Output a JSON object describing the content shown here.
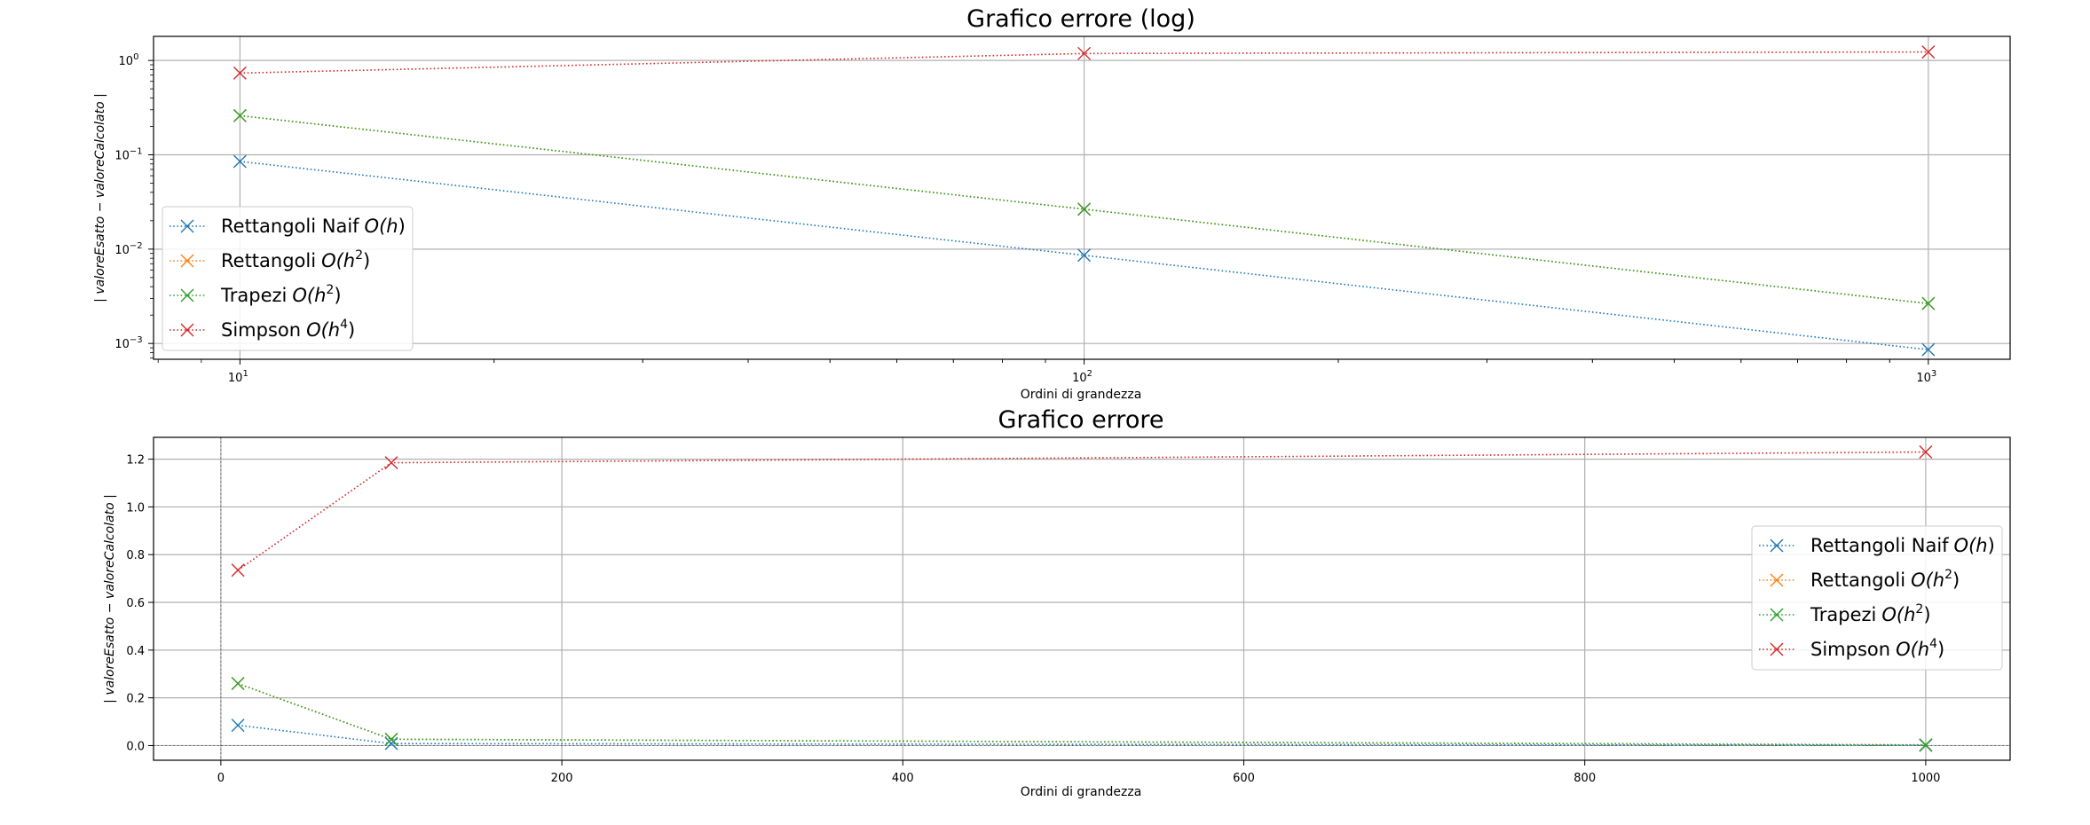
{
  "chart_data": [
    {
      "type": "line",
      "title": "Grafico errore (log)",
      "xlabel": "Ordini di grandezza",
      "ylabel": "| valoreEsatto − valoreCalcolato |",
      "xscale": "log",
      "yscale": "log",
      "xlim": [
        7.9,
        1250
      ],
      "ylim": [
        0.00068,
        1.8
      ],
      "x_ticks": [
        10,
        100,
        1000
      ],
      "x_tick_labels": [
        {
          "base": "10",
          "exp": "1"
        },
        {
          "base": "10",
          "exp": "2"
        },
        {
          "base": "10",
          "exp": "3"
        }
      ],
      "y_ticks": [
        0.001,
        0.01,
        0.1,
        1
      ],
      "y_tick_labels": [
        {
          "base": "10",
          "exp": "−3"
        },
        {
          "base": "10",
          "exp": "−2"
        },
        {
          "base": "10",
          "exp": "−1"
        },
        {
          "base": "10",
          "exp": "0"
        }
      ],
      "grid": true,
      "legend_position": "center-left",
      "marker": "x",
      "linestyle": "dotted",
      "x": [
        10,
        100,
        1000
      ],
      "series": [
        {
          "name": "Rettangoli Naif",
          "order": "h",
          "sup": "",
          "color": "#1f77b4",
          "values": [
            0.085,
            0.0086,
            0.00086
          ]
        },
        {
          "name": "Rettangoli",
          "order": "h",
          "sup": "2",
          "color": "#ff7f0e",
          "values": [
            0.26,
            0.0265,
            0.00265
          ]
        },
        {
          "name": "Trapezi",
          "order": "h",
          "sup": "2",
          "color": "#2ca02c",
          "values": [
            0.26,
            0.0265,
            0.00265
          ]
        },
        {
          "name": "Simpson",
          "order": "h",
          "sup": "4",
          "color": "#d62728",
          "values": [
            0.735,
            1.185,
            1.23
          ]
        }
      ]
    },
    {
      "type": "line",
      "title": "Grafico errore",
      "xlabel": "Ordini di grandezza",
      "ylabel": "| valoreEsatto − valoreCalcolato |",
      "xscale": "linear",
      "yscale": "linear",
      "xlim": [
        -39.5,
        1049.5
      ],
      "ylim": [
        -0.0615,
        1.2915
      ],
      "x_ticks": [
        0,
        200,
        400,
        600,
        800,
        1000
      ],
      "x_tick_labels": [
        "0",
        "200",
        "400",
        "600",
        "800",
        "1000"
      ],
      "y_ticks": [
        0,
        0.2,
        0.4,
        0.6,
        0.8,
        1.0,
        1.2
      ],
      "y_tick_labels": [
        "0.0",
        "0.2",
        "0.4",
        "0.6",
        "0.8",
        "1.0",
        "1.2"
      ],
      "grid": true,
      "reference_lines": "dotted x=0 and y=0",
      "legend_position": "center-right",
      "marker": "x",
      "linestyle": "dotted",
      "x": [
        10,
        100,
        1000
      ],
      "series": [
        {
          "name": "Rettangoli Naif",
          "order": "h",
          "sup": "",
          "color": "#1f77b4",
          "values": [
            0.085,
            0.0086,
            0.00086
          ]
        },
        {
          "name": "Rettangoli",
          "order": "h",
          "sup": "2",
          "color": "#ff7f0e",
          "values": [
            0.26,
            0.0265,
            0.00265
          ]
        },
        {
          "name": "Trapezi",
          "order": "h",
          "sup": "2",
          "color": "#2ca02c",
          "values": [
            0.26,
            0.0265,
            0.00265
          ]
        },
        {
          "name": "Simpson",
          "order": "h",
          "sup": "4",
          "color": "#d62728",
          "values": [
            0.735,
            1.185,
            1.23
          ]
        }
      ]
    }
  ]
}
